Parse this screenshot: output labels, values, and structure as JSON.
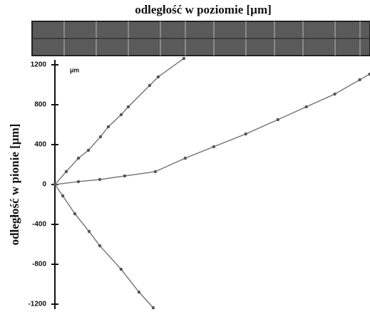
{
  "chart_data": {
    "type": "line",
    "title": "odległość w poziomie [µm]",
    "y_label": "odległość w pionie [µm]",
    "annotation": "µm",
    "xlim": [
      0,
      3160
    ],
    "ylim": [
      -1250,
      1250
    ],
    "yticks": [
      1200,
      800,
      400,
      0,
      -400,
      -800,
      -1200
    ],
    "series": [
      {
        "color": "#7a7a7a",
        "x": [
          0,
          114,
          236,
          336,
          457,
          536,
          664,
          736,
          950,
          1036,
          1293
        ],
        "values": [
          0,
          129,
          264,
          343,
          479,
          579,
          700,
          779,
          993,
          1079,
          1264
        ]
      },
      {
        "color": "#7a7a7a",
        "x": [
          0,
          236,
          450,
          700,
          1007,
          1307,
          1593,
          1914,
          2236,
          2521,
          2807,
          3057,
          3157
        ],
        "values": [
          0,
          29,
          50,
          86,
          129,
          264,
          379,
          507,
          650,
          779,
          907,
          1050,
          1107
        ]
      },
      {
        "color": "#7a7a7a",
        "x": [
          0,
          79,
          200,
          343,
          450,
          664,
          843,
          986
        ],
        "values": [
          0,
          -114,
          -293,
          -471,
          -614,
          -850,
          -1079,
          -1236
        ]
      }
    ]
  }
}
